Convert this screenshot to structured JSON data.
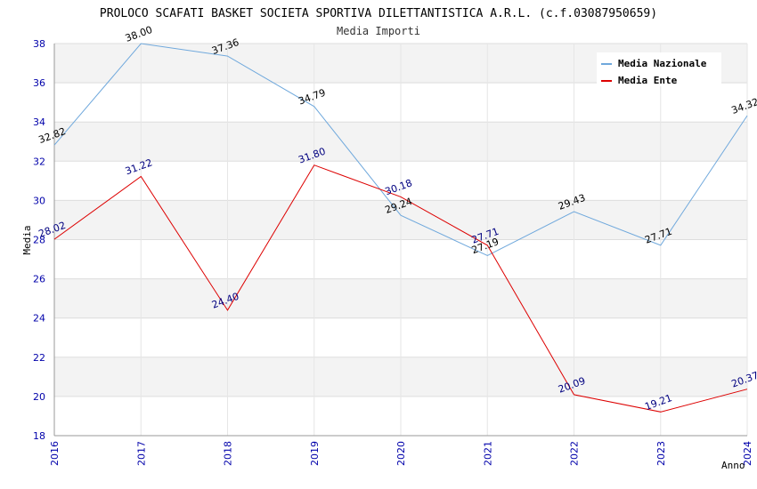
{
  "chart_data": {
    "type": "line",
    "title": "PROLOCO SCAFATI BASKET SOCIETA SPORTIVA DILETTANTISTICA A.R.L. (c.f.03087950659)",
    "subtitle": "Media Importi",
    "xlabel": "Anno",
    "ylabel": "Media",
    "ylim": [
      18,
      38
    ],
    "yticks": [
      "18",
      "20",
      "22",
      "24",
      "26",
      "28",
      "30",
      "32",
      "34",
      "36",
      "38"
    ],
    "categories": [
      "2016",
      "2017",
      "2018",
      "2019",
      "2020",
      "2021",
      "2022",
      "2023",
      "2024"
    ],
    "legend_position": "top-right",
    "grid": true,
    "series": [
      {
        "name": "Media Nazionale",
        "color": "#6fa8dc",
        "label_color": "#000000",
        "values": [
          32.82,
          38.0,
          37.36,
          34.79,
          29.24,
          27.19,
          29.43,
          27.71,
          34.32
        ],
        "labels": [
          "32.82",
          "38.00",
          "37.36",
          "34.79",
          "29.24",
          "27.19",
          "29.43",
          "27.71",
          "34.32"
        ]
      },
      {
        "name": "Media Ente",
        "color": "#dd0000",
        "label_color": "#000080",
        "values": [
          28.02,
          31.22,
          24.4,
          31.8,
          30.18,
          27.71,
          20.09,
          19.21,
          20.37
        ],
        "labels": [
          "28.02",
          "31.22",
          "24.40",
          "31.80",
          "30.18",
          "27.71",
          "20.09",
          "19.21",
          "20.37"
        ]
      }
    ]
  }
}
